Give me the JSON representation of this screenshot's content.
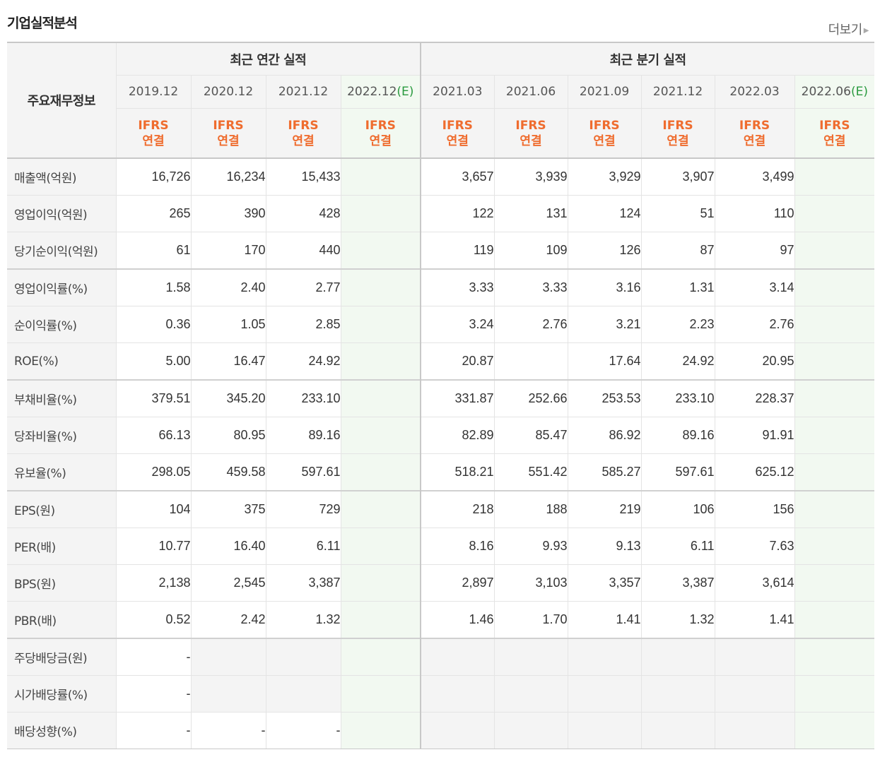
{
  "section_title": "기업실적분석",
  "more_link": "더보기",
  "headers": {
    "row_label": "주요재무정보",
    "annual_group": "최근 연간 실적",
    "quarter_group": "최근 분기 실적",
    "annual_periods": [
      {
        "label": "2019.12",
        "est": ""
      },
      {
        "label": "2020.12",
        "est": ""
      },
      {
        "label": "2021.12",
        "est": ""
      },
      {
        "label": "2022.12",
        "est": "(E)"
      }
    ],
    "quarter_periods": [
      {
        "label": "2021.03",
        "est": ""
      },
      {
        "label": "2021.06",
        "est": ""
      },
      {
        "label": "2021.09",
        "est": ""
      },
      {
        "label": "2021.12",
        "est": ""
      },
      {
        "label": "2022.03",
        "est": ""
      },
      {
        "label": "2022.06",
        "est": "(E)"
      }
    ],
    "basis_line1": "IFRS",
    "basis_line2": "연결"
  },
  "rows": [
    {
      "label": "매출액(억원)",
      "annual": [
        "16,726",
        "16,234",
        "15,433",
        ""
      ],
      "quarter": [
        "3,657",
        "3,939",
        "3,929",
        "3,907",
        "3,499",
        ""
      ]
    },
    {
      "label": "영업이익(억원)",
      "annual": [
        "265",
        "390",
        "428",
        ""
      ],
      "quarter": [
        "122",
        "131",
        "124",
        "51",
        "110",
        ""
      ]
    },
    {
      "label": "당기순이익(억원)",
      "annual": [
        "61",
        "170",
        "440",
        ""
      ],
      "quarter": [
        "119",
        "109",
        "126",
        "87",
        "97",
        ""
      ]
    },
    {
      "label": "영업이익률(%)",
      "annual": [
        "1.58",
        "2.40",
        "2.77",
        ""
      ],
      "quarter": [
        "3.33",
        "3.33",
        "3.16",
        "1.31",
        "3.14",
        ""
      ]
    },
    {
      "label": "순이익률(%)",
      "annual": [
        "0.36",
        "1.05",
        "2.85",
        ""
      ],
      "quarter": [
        "3.24",
        "2.76",
        "3.21",
        "2.23",
        "2.76",
        ""
      ]
    },
    {
      "label": "ROE(%)",
      "annual": [
        "5.00",
        "16.47",
        "24.92",
        ""
      ],
      "quarter": [
        "20.87",
        "",
        "17.64",
        "24.92",
        "20.95",
        ""
      ]
    },
    {
      "label": "부채비율(%)",
      "annual": [
        "379.51",
        "345.20",
        "233.10",
        ""
      ],
      "quarter": [
        "331.87",
        "252.66",
        "253.53",
        "233.10",
        "228.37",
        ""
      ]
    },
    {
      "label": "당좌비율(%)",
      "annual": [
        "66.13",
        "80.95",
        "89.16",
        ""
      ],
      "quarter": [
        "82.89",
        "85.47",
        "86.92",
        "89.16",
        "91.91",
        ""
      ]
    },
    {
      "label": "유보율(%)",
      "annual": [
        "298.05",
        "459.58",
        "597.61",
        ""
      ],
      "quarter": [
        "518.21",
        "551.42",
        "585.27",
        "597.61",
        "625.12",
        ""
      ]
    },
    {
      "label": "EPS(원)",
      "annual": [
        "104",
        "375",
        "729",
        ""
      ],
      "quarter": [
        "218",
        "188",
        "219",
        "106",
        "156",
        ""
      ]
    },
    {
      "label": "PER(배)",
      "annual": [
        "10.77",
        "16.40",
        "6.11",
        ""
      ],
      "quarter": [
        "8.16",
        "9.93",
        "9.13",
        "6.11",
        "7.63",
        ""
      ]
    },
    {
      "label": "BPS(원)",
      "annual": [
        "2,138",
        "2,545",
        "3,387",
        ""
      ],
      "quarter": [
        "2,897",
        "3,103",
        "3,357",
        "3,387",
        "3,614",
        ""
      ]
    },
    {
      "label": "PBR(배)",
      "annual": [
        "0.52",
        "2.42",
        "1.32",
        ""
      ],
      "quarter": [
        "1.46",
        "1.70",
        "1.41",
        "1.32",
        "1.41",
        ""
      ]
    },
    {
      "label": "주당배당금(원)",
      "annual": [
        "-",
        "",
        "",
        ""
      ],
      "quarter": [
        "",
        "",
        "",
        "",
        "",
        ""
      ]
    },
    {
      "label": "시가배당률(%)",
      "annual": [
        "-",
        "",
        "",
        ""
      ],
      "quarter": [
        "",
        "",
        "",
        "",
        "",
        ""
      ]
    },
    {
      "label": "배당성향(%)",
      "annual": [
        "-",
        "-",
        "-",
        ""
      ],
      "quarter": [
        "",
        "",
        "",
        "",
        "",
        ""
      ]
    }
  ],
  "colors": {
    "ifrs": "#ef6c2e",
    "estimate": "#2a9a3f",
    "estimate_bg": "#f2f9f1",
    "header_bg": "#f4f4f4"
  }
}
